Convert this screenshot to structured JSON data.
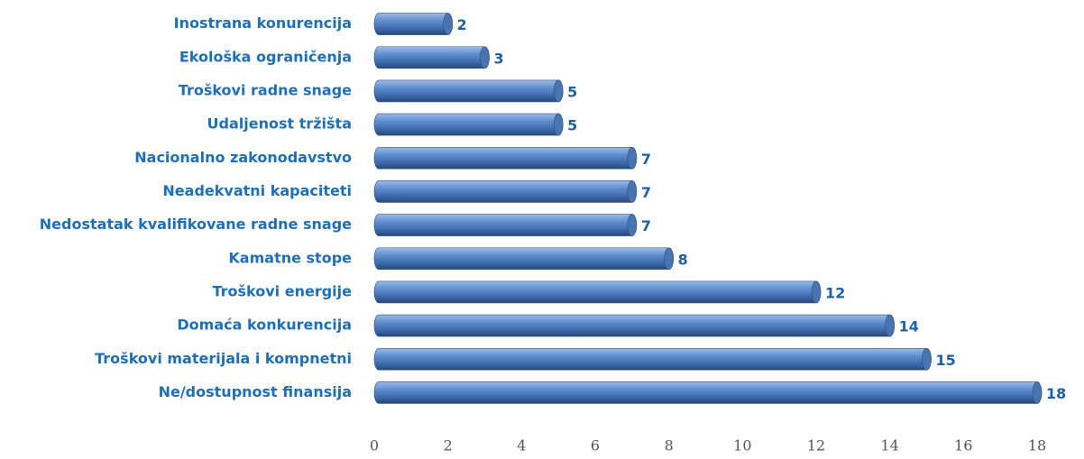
{
  "chart_data": {
    "type": "bar",
    "orientation": "horizontal",
    "categories": [
      "Inostrana konurencija",
      "Ekološka ograničenja",
      "Troškovi radne snage",
      "Udaljenost tržišta",
      "Nacionalno zakonodavstvo",
      "Neadekvatni kapaciteti",
      "Nedostatak kvalifikovane radne snage",
      "Kamatne stope",
      "Troškovi energije",
      "Domaća konkurencija",
      "Troškovi materijala i kompnetni",
      "Ne/dostupnost finansija"
    ],
    "values": [
      2,
      3,
      5,
      5,
      7,
      7,
      7,
      8,
      12,
      14,
      15,
      18
    ],
    "color": "#4f81bd",
    "xlim": [
      0,
      18
    ],
    "xticks": [
      0,
      2,
      4,
      6,
      8,
      10,
      12,
      14,
      16,
      18
    ],
    "grid": false
  }
}
